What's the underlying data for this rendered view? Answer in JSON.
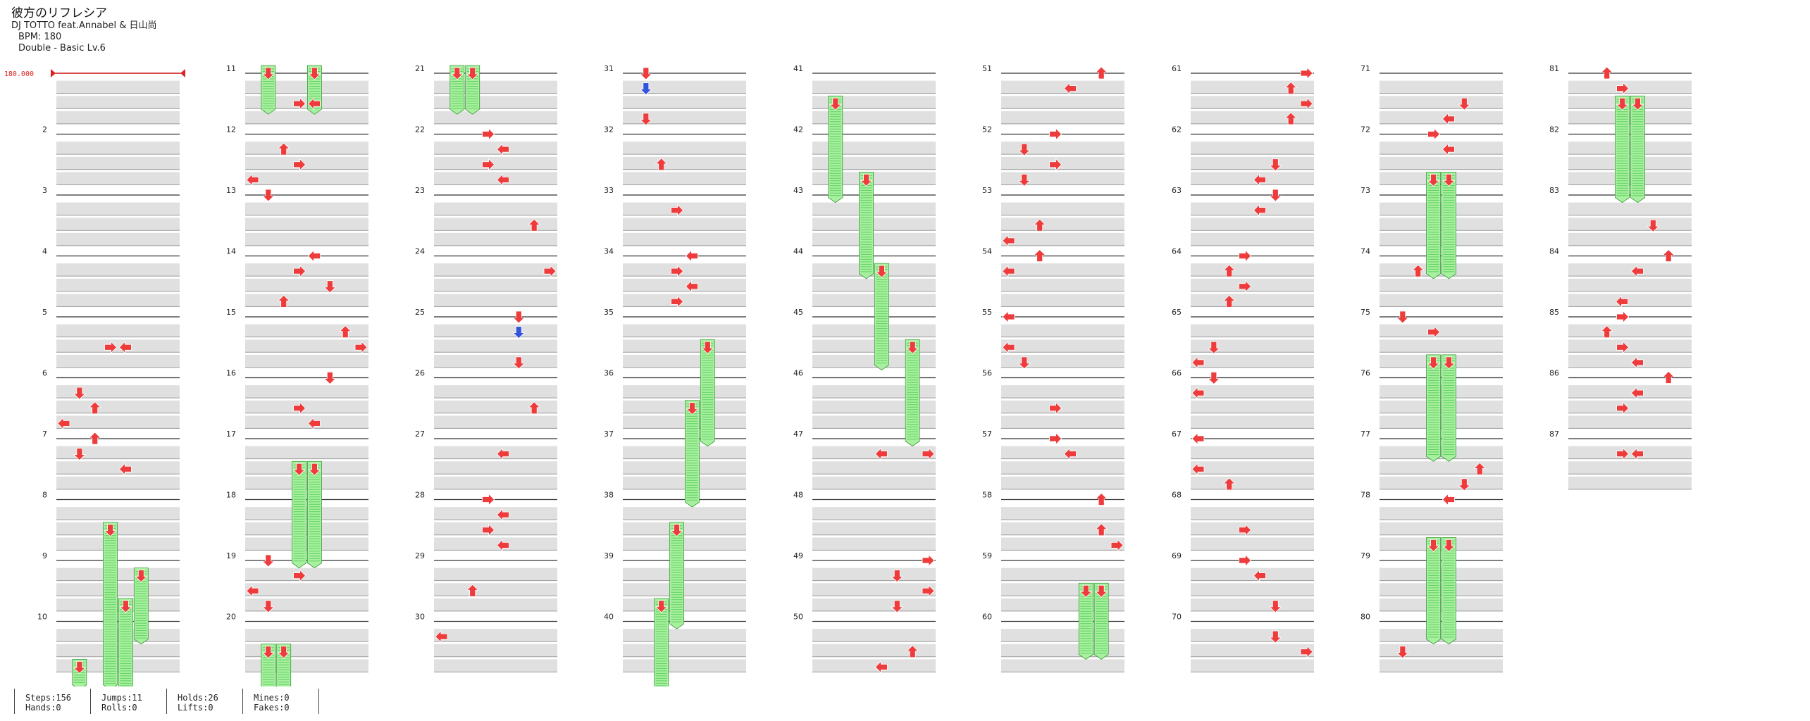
{
  "song": {
    "title": "彼方のリフレシア",
    "artist": "DJ TOTTO feat.Annabel & 日山尚",
    "bpm_text": "BPM: 180",
    "difficulty_text": "Double - Basic  Lv.6"
  },
  "bpm_marker": "180.000",
  "measure_count": 87,
  "stats": [
    [
      "Steps:156",
      "Hands:0"
    ],
    [
      "Jumps:11",
      "Rolls:0"
    ],
    [
      "Holds:26",
      "Lifts:0"
    ],
    [
      "Mines:0",
      "Fakes:0"
    ]
  ],
  "colors": {
    "note_red": "#ee3b3b",
    "note_blue": "#3355dd",
    "hold_fill": "#a8f0a0",
    "hold_stripe": "#5ccf5c",
    "row_band": "#e0e0e0",
    "bpm_line": "#dd2222"
  },
  "chart_data": {
    "type": "table",
    "measures_per_column": 10,
    "lane_count": 8,
    "note_types": [
      "left",
      "right",
      "up",
      "down",
      "down-blue",
      "hold"
    ],
    "notes": [
      {
        "m": 5,
        "r": 2,
        "lane": 3,
        "t": "right"
      },
      {
        "m": 5,
        "r": 2,
        "lane": 4,
        "t": "left"
      },
      {
        "m": 6,
        "r": 1,
        "lane": 1,
        "t": "down"
      },
      {
        "m": 6,
        "r": 2,
        "lane": 2,
        "t": "up"
      },
      {
        "m": 6,
        "r": 3,
        "lane": 0,
        "t": "left"
      },
      {
        "m": 7,
        "r": 0,
        "lane": 2,
        "t": "up"
      },
      {
        "m": 7,
        "r": 1,
        "lane": 1,
        "t": "down"
      },
      {
        "m": 7,
        "r": 2,
        "lane": 4,
        "t": "left"
      },
      {
        "m": 8,
        "r": 2,
        "lane": 3,
        "t": "hold",
        "len": 2.75
      },
      {
        "m": 9,
        "r": 1,
        "lane": 5,
        "t": "hold",
        "len": 1.25
      },
      {
        "m": 9,
        "r": 3,
        "lane": 4,
        "t": "hold",
        "len": 2.25
      },
      {
        "m": 10,
        "r": 3,
        "lane": 1,
        "t": "hold",
        "len": 0.5
      },
      {
        "m": 11,
        "r": 0,
        "lane": 1,
        "t": "hold",
        "len": 0.8
      },
      {
        "m": 11,
        "r": 0,
        "lane": 4,
        "t": "hold",
        "len": 0.8
      },
      {
        "m": 11,
        "r": 2,
        "lane": 3,
        "t": "right"
      },
      {
        "m": 11,
        "r": 2,
        "lane": 4,
        "t": "left"
      },
      {
        "m": 12,
        "r": 1,
        "lane": 2,
        "t": "up"
      },
      {
        "m": 12,
        "r": 2,
        "lane": 3,
        "t": "right"
      },
      {
        "m": 12,
        "r": 3,
        "lane": 0,
        "t": "left"
      },
      {
        "m": 13,
        "r": 0,
        "lane": 1,
        "t": "down"
      },
      {
        "m": 14,
        "r": 3,
        "lane": 2,
        "t": "up"
      },
      {
        "m": 14,
        "r": 0,
        "lane": 4,
        "t": "left"
      },
      {
        "m": 14,
        "r": 1,
        "lane": 3,
        "t": "right"
      },
      {
        "m": 14,
        "r": 2,
        "lane": 5,
        "t": "down"
      },
      {
        "m": 15,
        "r": 1,
        "lane": 6,
        "t": "up"
      },
      {
        "m": 15,
        "r": 2,
        "lane": 7,
        "t": "right"
      },
      {
        "m": 16,
        "r": 3,
        "lane": 4,
        "t": "left"
      },
      {
        "m": 16,
        "r": 0,
        "lane": 5,
        "t": "down"
      },
      {
        "m": 16,
        "r": 2,
        "lane": 3,
        "t": "right"
      },
      {
        "m": 17,
        "r": 2,
        "lane": 3,
        "t": "hold",
        "len": 1.75
      },
      {
        "m": 17,
        "r": 2,
        "lane": 4,
        "t": "hold",
        "len": 1.75
      },
      {
        "m": 19,
        "r": 0,
        "lane": 1,
        "t": "down"
      },
      {
        "m": 19,
        "r": 1,
        "lane": 3,
        "t": "right"
      },
      {
        "m": 19,
        "r": 2,
        "lane": 0,
        "t": "left"
      },
      {
        "m": 19,
        "r": 3,
        "lane": 1,
        "t": "down"
      },
      {
        "m": 20,
        "r": 2,
        "lane": 1,
        "t": "hold",
        "len": 1.0
      },
      {
        "m": 20,
        "r": 2,
        "lane": 2,
        "t": "hold",
        "len": 1.0
      },
      {
        "m": 21,
        "r": 0,
        "lane": 1,
        "t": "hold",
        "len": 0.8
      },
      {
        "m": 21,
        "r": 0,
        "lane": 2,
        "t": "hold",
        "len": 0.8
      },
      {
        "m": 22,
        "r": 0,
        "lane": 3,
        "t": "right"
      },
      {
        "m": 22,
        "r": 1,
        "lane": 4,
        "t": "left"
      },
      {
        "m": 22,
        "r": 2,
        "lane": 3,
        "t": "right"
      },
      {
        "m": 22,
        "r": 3,
        "lane": 4,
        "t": "left"
      },
      {
        "m": 23,
        "r": 2,
        "lane": 6,
        "t": "up"
      },
      {
        "m": 24,
        "r": 1,
        "lane": 7,
        "t": "right"
      },
      {
        "m": 25,
        "r": 0,
        "lane": 5,
        "t": "down"
      },
      {
        "m": 25,
        "r": 1,
        "lane": 5,
        "t": "down-blue"
      },
      {
        "m": 25,
        "r": 3,
        "lane": 5,
        "t": "down"
      },
      {
        "m": 26,
        "r": 2,
        "lane": 6,
        "t": "up"
      },
      {
        "m": 27,
        "r": 1,
        "lane": 4,
        "t": "left"
      },
      {
        "m": 28,
        "r": 0,
        "lane": 3,
        "t": "right"
      },
      {
        "m": 28,
        "r": 1,
        "lane": 4,
        "t": "left"
      },
      {
        "m": 28,
        "r": 2,
        "lane": 3,
        "t": "right"
      },
      {
        "m": 28,
        "r": 3,
        "lane": 4,
        "t": "left"
      },
      {
        "m": 29,
        "r": 2,
        "lane": 2,
        "t": "up"
      },
      {
        "m": 30,
        "r": 1,
        "lane": 0,
        "t": "left"
      },
      {
        "m": 31,
        "r": 0,
        "lane": 1,
        "t": "down"
      },
      {
        "m": 31,
        "r": 1,
        "lane": 1,
        "t": "down-blue"
      },
      {
        "m": 31,
        "r": 3,
        "lane": 1,
        "t": "down"
      },
      {
        "m": 32,
        "r": 2,
        "lane": 2,
        "t": "up"
      },
      {
        "m": 33,
        "r": 1,
        "lane": 3,
        "t": "right"
      },
      {
        "m": 34,
        "r": 0,
        "lane": 4,
        "t": "left"
      },
      {
        "m": 34,
        "r": 1,
        "lane": 3,
        "t": "right"
      },
      {
        "m": 34,
        "r": 2,
        "lane": 4,
        "t": "left"
      },
      {
        "m": 34,
        "r": 3,
        "lane": 3,
        "t": "right"
      },
      {
        "m": 35,
        "r": 2,
        "lane": 5,
        "t": "hold",
        "len": 1.75
      },
      {
        "m": 36,
        "r": 2,
        "lane": 4,
        "t": "hold",
        "len": 1.75
      },
      {
        "m": 38,
        "r": 2,
        "lane": 3,
        "t": "hold",
        "len": 1.75
      },
      {
        "m": 39,
        "r": 3,
        "lane": 2,
        "t": "hold",
        "len": 1.75
      },
      {
        "m": 41,
        "r": 2,
        "lane": 1,
        "t": "hold",
        "len": 1.75
      },
      {
        "m": 42,
        "r": 3,
        "lane": 3,
        "t": "hold",
        "len": 1.75
      },
      {
        "m": 44,
        "r": 1,
        "lane": 4,
        "t": "hold",
        "len": 1.75
      },
      {
        "m": 45,
        "r": 2,
        "lane": 6,
        "t": "hold",
        "len": 1.75
      },
      {
        "m": 47,
        "r": 1,
        "lane": 4,
        "t": "left"
      },
      {
        "m": 47,
        "r": 1,
        "lane": 7,
        "t": "right"
      },
      {
        "m": 49,
        "r": 0,
        "lane": 7,
        "t": "right"
      },
      {
        "m": 49,
        "r": 1,
        "lane": 5,
        "t": "down"
      },
      {
        "m": 49,
        "r": 2,
        "lane": 7,
        "t": "right"
      },
      {
        "m": 49,
        "r": 3,
        "lane": 5,
        "t": "down"
      },
      {
        "m": 50,
        "r": 2,
        "lane": 6,
        "t": "up"
      },
      {
        "m": 50,
        "r": 3,
        "lane": 4,
        "t": "left"
      },
      {
        "m": 51,
        "r": 0,
        "lane": 6,
        "t": "up"
      },
      {
        "m": 51,
        "r": 1,
        "lane": 4,
        "t": "left"
      },
      {
        "m": 52,
        "r": 0,
        "lane": 3,
        "t": "right"
      },
      {
        "m": 52,
        "r": 1,
        "lane": 1,
        "t": "down"
      },
      {
        "m": 52,
        "r": 2,
        "lane": 3,
        "t": "right"
      },
      {
        "m": 52,
        "r": 3,
        "lane": 1,
        "t": "down"
      },
      {
        "m": 53,
        "r": 2,
        "lane": 2,
        "t": "up"
      },
      {
        "m": 53,
        "r": 3,
        "lane": 0,
        "t": "left"
      },
      {
        "m": 54,
        "r": 0,
        "lane": 2,
        "t": "up"
      },
      {
        "m": 54,
        "r": 1,
        "lane": 0,
        "t": "left"
      },
      {
        "m": 55,
        "r": 0,
        "lane": 0,
        "t": "left"
      },
      {
        "m": 55,
        "r": 2,
        "lane": 0,
        "t": "left"
      },
      {
        "m": 55,
        "r": 3,
        "lane": 1,
        "t": "down"
      },
      {
        "m": 56,
        "r": 2,
        "lane": 3,
        "t": "right"
      },
      {
        "m": 57,
        "r": 0,
        "lane": 3,
        "t": "right"
      },
      {
        "m": 57,
        "r": 1,
        "lane": 4,
        "t": "left"
      },
      {
        "m": 58,
        "r": 0,
        "lane": 6,
        "t": "up"
      },
      {
        "m": 58,
        "r": 2,
        "lane": 6,
        "t": "up"
      },
      {
        "m": 58,
        "r": 3,
        "lane": 7,
        "t": "right"
      },
      {
        "m": 59,
        "r": 2,
        "lane": 5,
        "t": "hold",
        "len": 1.25
      },
      {
        "m": 59,
        "r": 2,
        "lane": 6,
        "t": "hold",
        "len": 1.25
      },
      {
        "m": 61,
        "r": 0,
        "lane": 7,
        "t": "right"
      },
      {
        "m": 61,
        "r": 1,
        "lane": 6,
        "t": "up"
      },
      {
        "m": 61,
        "r": 2,
        "lane": 7,
        "t": "right"
      },
      {
        "m": 61,
        "r": 3,
        "lane": 6,
        "t": "up"
      },
      {
        "m": 62,
        "r": 2,
        "lane": 5,
        "t": "down"
      },
      {
        "m": 62,
        "r": 3,
        "lane": 4,
        "t": "left"
      },
      {
        "m": 63,
        "r": 0,
        "lane": 5,
        "t": "down"
      },
      {
        "m": 63,
        "r": 1,
        "lane": 4,
        "t": "left"
      },
      {
        "m": 64,
        "r": 0,
        "lane": 3,
        "t": "right"
      },
      {
        "m": 64,
        "r": 1,
        "lane": 2,
        "t": "up"
      },
      {
        "m": 64,
        "r": 2,
        "lane": 3,
        "t": "right"
      },
      {
        "m": 64,
        "r": 3,
        "lane": 2,
        "t": "up"
      },
      {
        "m": 65,
        "r": 2,
        "lane": 1,
        "t": "down"
      },
      {
        "m": 65,
        "r": 3,
        "lane": 0,
        "t": "left"
      },
      {
        "m": 66,
        "r": 0,
        "lane": 1,
        "t": "down"
      },
      {
        "m": 66,
        "r": 1,
        "lane": 0,
        "t": "left"
      },
      {
        "m": 67,
        "r": 0,
        "lane": 0,
        "t": "left"
      },
      {
        "m": 67,
        "r": 2,
        "lane": 0,
        "t": "left"
      },
      {
        "m": 67,
        "r": 3,
        "lane": 2,
        "t": "up"
      },
      {
        "m": 68,
        "r": 2,
        "lane": 3,
        "t": "right"
      },
      {
        "m": 69,
        "r": 0,
        "lane": 3,
        "t": "right"
      },
      {
        "m": 69,
        "r": 1,
        "lane": 4,
        "t": "left"
      },
      {
        "m": 69,
        "r": 3,
        "lane": 5,
        "t": "down"
      },
      {
        "m": 70,
        "r": 1,
        "lane": 5,
        "t": "down"
      },
      {
        "m": 70,
        "r": 2,
        "lane": 7,
        "t": "right"
      },
      {
        "m": 71,
        "r": 2,
        "lane": 5,
        "t": "down"
      },
      {
        "m": 71,
        "r": 3,
        "lane": 4,
        "t": "left"
      },
      {
        "m": 72,
        "r": 0,
        "lane": 3,
        "t": "right"
      },
      {
        "m": 72,
        "r": 1,
        "lane": 4,
        "t": "left"
      },
      {
        "m": 72,
        "r": 3,
        "lane": 3,
        "t": "hold",
        "len": 1.75
      },
      {
        "m": 72,
        "r": 3,
        "lane": 4,
        "t": "hold",
        "len": 1.75
      },
      {
        "m": 74,
        "r": 1,
        "lane": 2,
        "t": "up"
      },
      {
        "m": 75,
        "r": 0,
        "lane": 1,
        "t": "down"
      },
      {
        "m": 75,
        "r": 1,
        "lane": 3,
        "t": "right"
      },
      {
        "m": 75,
        "r": 3,
        "lane": 3,
        "t": "hold",
        "len": 1.75
      },
      {
        "m": 75,
        "r": 3,
        "lane": 4,
        "t": "hold",
        "len": 1.75
      },
      {
        "m": 77,
        "r": 2,
        "lane": 6,
        "t": "up"
      },
      {
        "m": 77,
        "r": 3,
        "lane": 5,
        "t": "down"
      },
      {
        "m": 78,
        "r": 0,
        "lane": 4,
        "t": "left"
      },
      {
        "m": 78,
        "r": 3,
        "lane": 3,
        "t": "hold",
        "len": 1.75
      },
      {
        "m": 78,
        "r": 3,
        "lane": 4,
        "t": "hold",
        "len": 1.75
      },
      {
        "m": 80,
        "r": 2,
        "lane": 1,
        "t": "down"
      },
      {
        "m": 81,
        "r": 0,
        "lane": 2,
        "t": "up"
      },
      {
        "m": 81,
        "r": 1,
        "lane": 3,
        "t": "right"
      },
      {
        "m": 81,
        "r": 2,
        "lane": 3,
        "t": "hold",
        "len": 1.75
      },
      {
        "m": 81,
        "r": 2,
        "lane": 4,
        "t": "hold",
        "len": 1.75
      },
      {
        "m": 83,
        "r": 2,
        "lane": 5,
        "t": "down"
      },
      {
        "m": 84,
        "r": 0,
        "lane": 6,
        "t": "up"
      },
      {
        "m": 84,
        "r": 1,
        "lane": 4,
        "t": "left"
      },
      {
        "m": 84,
        "r": 3,
        "lane": 3,
        "t": "left"
      },
      {
        "m": 85,
        "r": 0,
        "lane": 3,
        "t": "right"
      },
      {
        "m": 85,
        "r": 1,
        "lane": 2,
        "t": "up"
      },
      {
        "m": 85,
        "r": 2,
        "lane": 3,
        "t": "right"
      },
      {
        "m": 85,
        "r": 3,
        "lane": 4,
        "t": "left"
      },
      {
        "m": 86,
        "r": 0,
        "lane": 6,
        "t": "up"
      },
      {
        "m": 86,
        "r": 1,
        "lane": 4,
        "t": "left"
      },
      {
        "m": 86,
        "r": 2,
        "lane": 3,
        "t": "right"
      },
      {
        "m": 87,
        "r": 1,
        "lane": 3,
        "t": "right"
      },
      {
        "m": 87,
        "r": 1,
        "lane": 4,
        "t": "left"
      }
    ]
  }
}
